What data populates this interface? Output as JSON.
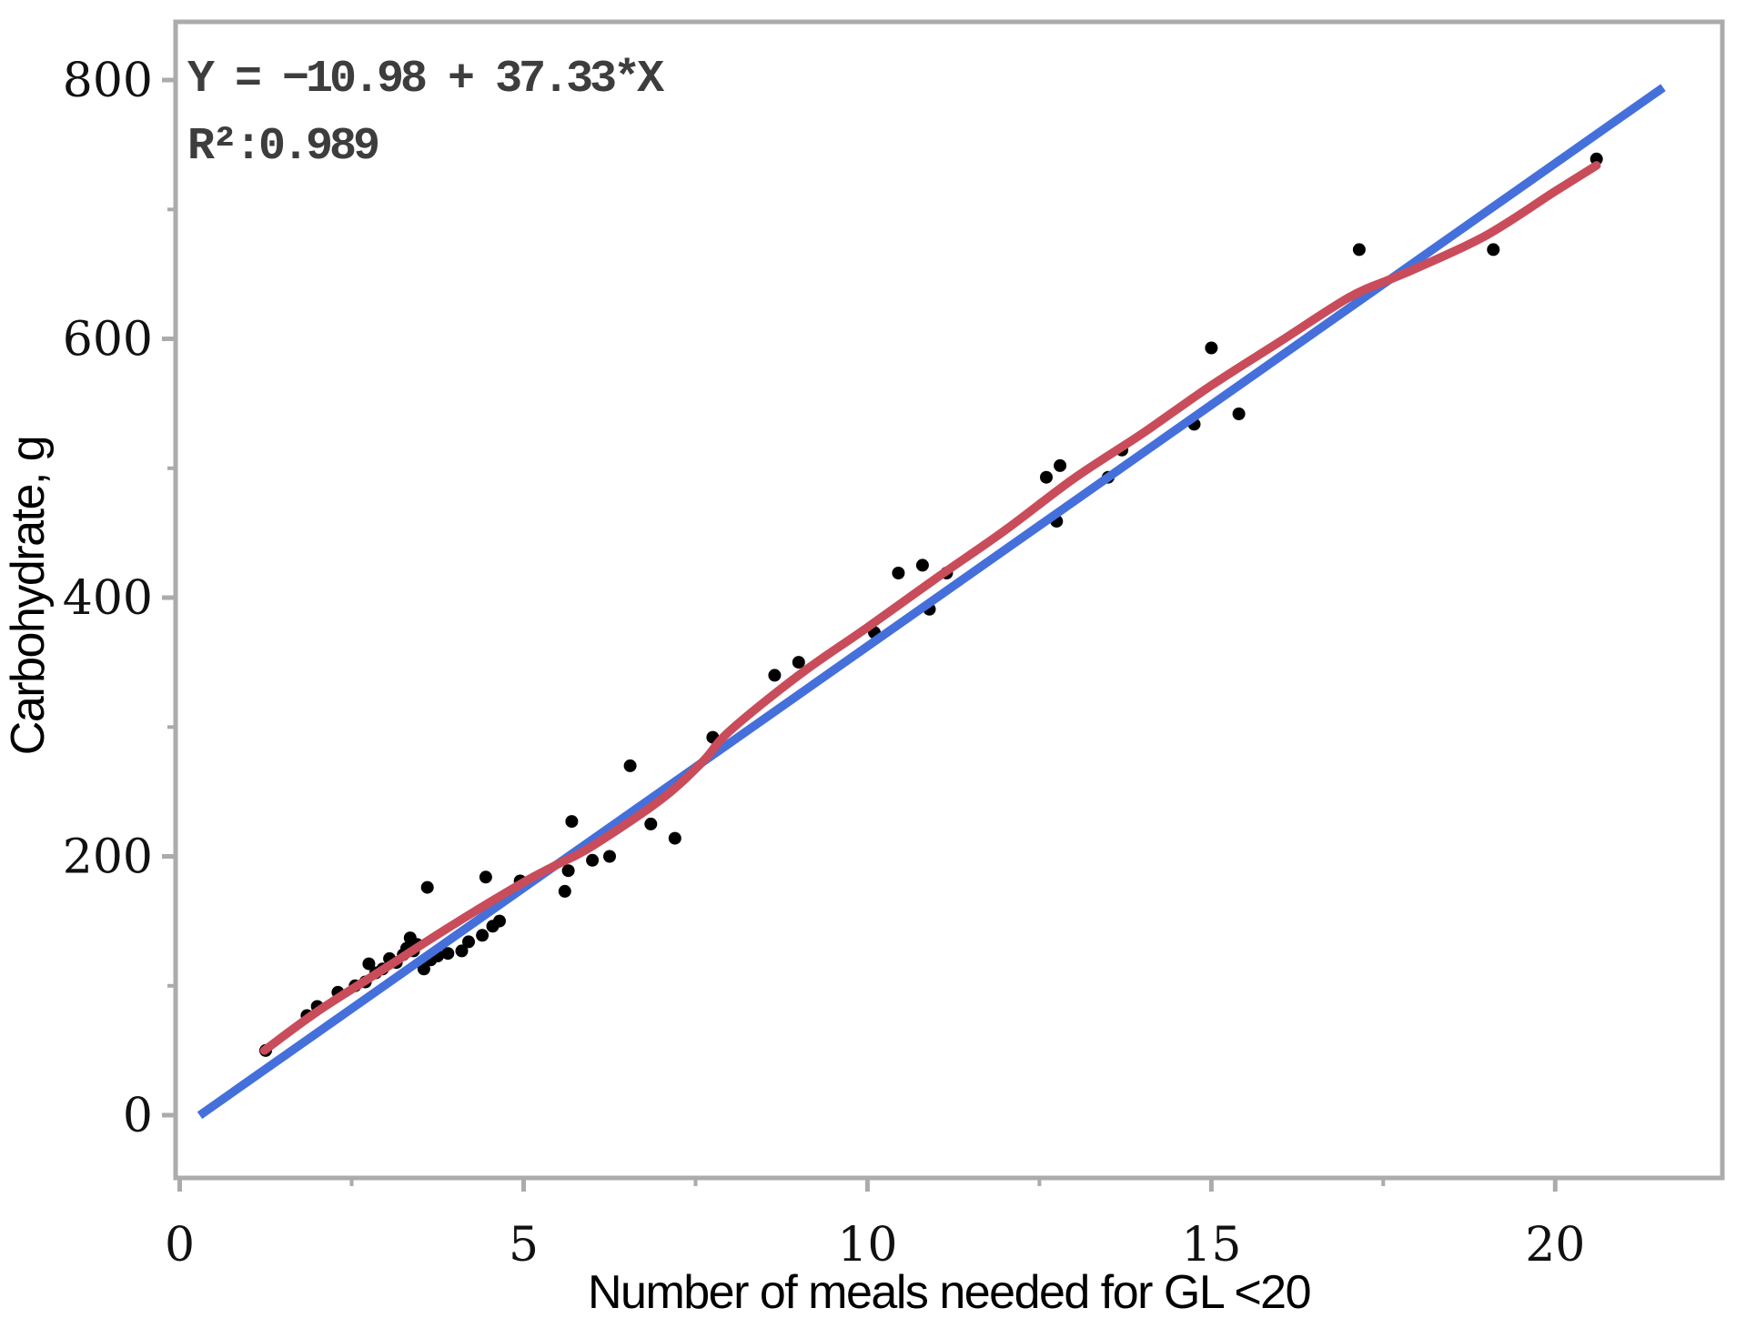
{
  "chart_data": {
    "type": "scatter",
    "title": "",
    "xlabel": "Number of meals needed for GL <20",
    "ylabel": "Carbohydrate, g",
    "annotation": {
      "line1": "Y = −10.98 + 37.33*X",
      "line2": "R²:0.989"
    },
    "xlim": [
      -0.06,
      22.43
    ],
    "ylim": [
      -48.5,
      845
    ],
    "grid": false,
    "legend": "none",
    "x_ticks": {
      "major": [
        0,
        5,
        10,
        15,
        20
      ],
      "minor": [
        2.5,
        7.5,
        12.5,
        17.5
      ]
    },
    "y_ticks": {
      "major": [
        0,
        200,
        400,
        600,
        800
      ],
      "minor": [
        100,
        300,
        500,
        700
      ]
    },
    "scatter_color": "#000000",
    "point_radius": 7,
    "regression": {
      "slope": 37.33,
      "intercept": -10.98,
      "r_squared": 0.989,
      "x_start": 0.29,
      "x_end": 21.57,
      "color": "#4570DB",
      "width": 9.5
    },
    "loess": {
      "color": "#C94C5B",
      "width": 9.5,
      "points": [
        [
          1.23,
          50
        ],
        [
          2,
          80
        ],
        [
          3,
          114
        ],
        [
          4,
          148
        ],
        [
          5,
          180
        ],
        [
          5.5,
          194
        ],
        [
          6,
          208
        ],
        [
          7,
          244
        ],
        [
          7.6,
          273
        ],
        [
          8,
          297
        ],
        [
          9,
          340
        ],
        [
          10,
          377
        ],
        [
          11,
          415
        ],
        [
          12,
          452
        ],
        [
          13,
          492
        ],
        [
          14,
          527
        ],
        [
          15,
          564
        ],
        [
          16,
          598
        ],
        [
          17,
          632
        ],
        [
          17.6,
          646
        ],
        [
          18,
          655
        ],
        [
          19,
          680
        ],
        [
          20,
          714
        ],
        [
          20.6,
          734
        ]
      ]
    },
    "points": [
      [
        1.25,
        50
      ],
      [
        1.85,
        77
      ],
      [
        2.0,
        84
      ],
      [
        2.3,
        95
      ],
      [
        2.55,
        100
      ],
      [
        2.7,
        103
      ],
      [
        2.75,
        117
      ],
      [
        2.85,
        110
      ],
      [
        2.95,
        113
      ],
      [
        3.05,
        121
      ],
      [
        3.15,
        118
      ],
      [
        3.25,
        124
      ],
      [
        3.3,
        129
      ],
      [
        3.35,
        137
      ],
      [
        3.4,
        127
      ],
      [
        3.45,
        132
      ],
      [
        3.55,
        113
      ],
      [
        3.6,
        176
      ],
      [
        3.65,
        120
      ],
      [
        3.75,
        123
      ],
      [
        3.9,
        125
      ],
      [
        4.1,
        127
      ],
      [
        4.2,
        134
      ],
      [
        4.4,
        139
      ],
      [
        4.45,
        184
      ],
      [
        4.55,
        146
      ],
      [
        4.65,
        150
      ],
      [
        4.95,
        181
      ],
      [
        5.6,
        173
      ],
      [
        5.65,
        189
      ],
      [
        5.7,
        227
      ],
      [
        6.0,
        197
      ],
      [
        6.25,
        200
      ],
      [
        6.55,
        270
      ],
      [
        6.85,
        225
      ],
      [
        7.2,
        214
      ],
      [
        7.75,
        292
      ],
      [
        8.65,
        340
      ],
      [
        9.0,
        350
      ],
      [
        10.1,
        373
      ],
      [
        10.45,
        419
      ],
      [
        10.8,
        425
      ],
      [
        10.9,
        391
      ],
      [
        11.15,
        419
      ],
      [
        12.6,
        493
      ],
      [
        12.75,
        459
      ],
      [
        12.8,
        502
      ],
      [
        13.5,
        493
      ],
      [
        13.7,
        514
      ],
      [
        14.75,
        534
      ],
      [
        15.0,
        593
      ],
      [
        15.4,
        542
      ],
      [
        17.15,
        669
      ],
      [
        19.1,
        669
      ],
      [
        20.6,
        739
      ]
    ],
    "frame_color": "#ABABAB",
    "tick_color": "#ABABAB"
  }
}
